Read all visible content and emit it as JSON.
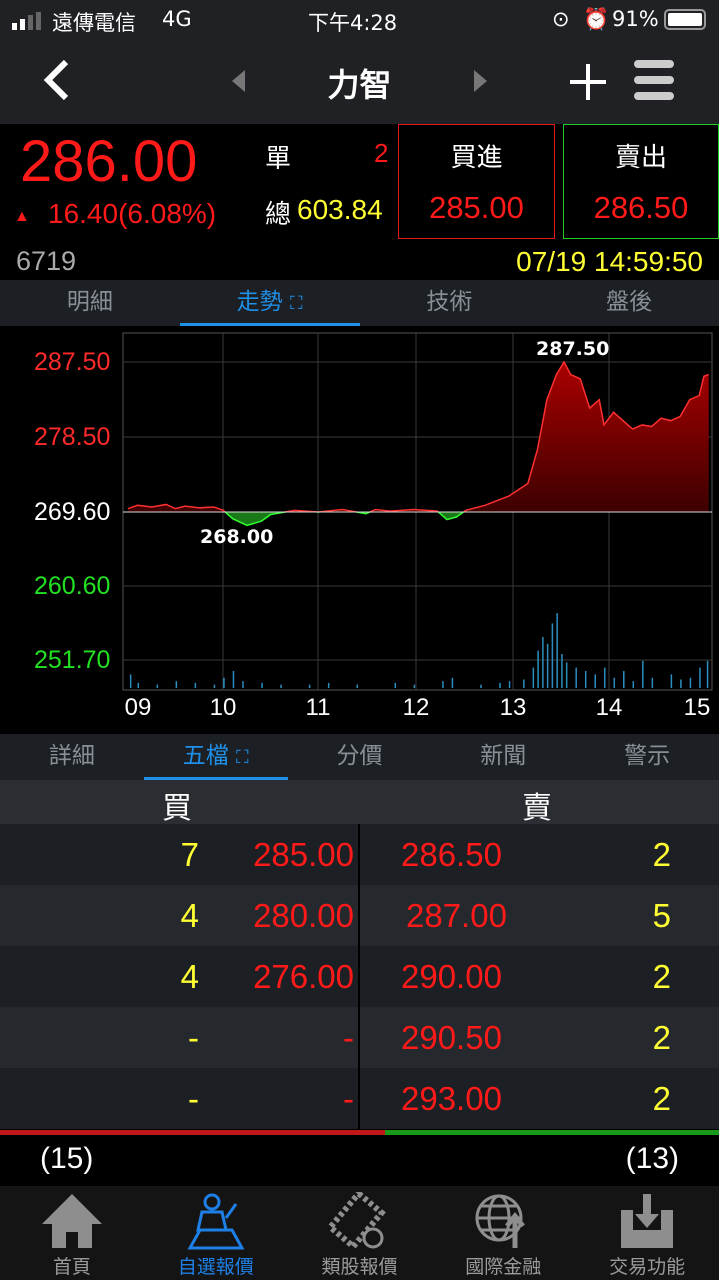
{
  "status_bar": {
    "carrier": "遠傳電信",
    "network": "4G",
    "time": "下午4:28",
    "battery": "91%"
  },
  "header": {
    "title": "力智",
    "back_icon": "chevron-left-icon",
    "add_icon": "plus-icon",
    "menu_icon": "hamburger-menu-icon"
  },
  "quote": {
    "price": "286.00",
    "change": "16.40(6.08%)",
    "single_label": "單",
    "single_value": "2",
    "total_label": "總",
    "total_value": "603.84",
    "buy_label": "買進",
    "buy_price": "285.00",
    "sell_label": "賣出",
    "sell_price": "286.50",
    "code": "6719",
    "datetime": "07/19 14:59:50",
    "up_color": "#ff1a1a",
    "down_color": "#22e022"
  },
  "top_tabs": [
    {
      "label": "明細"
    },
    {
      "label": "走勢"
    },
    {
      "label": "技術"
    },
    {
      "label": "盤後"
    }
  ],
  "chart_data": {
    "type": "line",
    "y_ticks": [
      "287.50",
      "278.50",
      "269.60",
      "260.60",
      "251.70"
    ],
    "ylim": [
      251.7,
      287.5
    ],
    "reference": 269.6,
    "x_ticks": [
      "09",
      "10",
      "11",
      "12",
      "13",
      "14",
      "15"
    ],
    "annotations": {
      "high": "287.50",
      "low": "268.00"
    },
    "grid": true,
    "price": [
      [
        9.0,
        270.0
      ],
      [
        9.1,
        270.4
      ],
      [
        9.25,
        270.2
      ],
      [
        9.4,
        270.5
      ],
      [
        9.5,
        270.0
      ],
      [
        9.6,
        270.3
      ],
      [
        9.75,
        270.1
      ],
      [
        9.9,
        270.2
      ],
      [
        10.0,
        269.8
      ],
      [
        10.1,
        268.8
      ],
      [
        10.25,
        268.0
      ],
      [
        10.4,
        268.5
      ],
      [
        10.5,
        269.3
      ],
      [
        10.75,
        269.8
      ],
      [
        11.0,
        269.6
      ],
      [
        11.25,
        269.9
      ],
      [
        11.5,
        269.4
      ],
      [
        11.6,
        269.9
      ],
      [
        11.75,
        269.7
      ],
      [
        12.0,
        269.9
      ],
      [
        12.25,
        269.7
      ],
      [
        12.35,
        268.7
      ],
      [
        12.45,
        269.0
      ],
      [
        12.55,
        269.8
      ],
      [
        12.75,
        270.4
      ],
      [
        13.0,
        271.5
      ],
      [
        13.2,
        273.0
      ],
      [
        13.3,
        277.0
      ],
      [
        13.4,
        283.0
      ],
      [
        13.5,
        286.0
      ],
      [
        13.58,
        287.5
      ],
      [
        13.65,
        286.0
      ],
      [
        13.75,
        285.5
      ],
      [
        13.85,
        282.0
      ],
      [
        13.95,
        283.0
      ],
      [
        14.0,
        280.0
      ],
      [
        14.1,
        281.5
      ],
      [
        14.2,
        280.5
      ],
      [
        14.3,
        279.5
      ],
      [
        14.4,
        280.0
      ],
      [
        14.5,
        279.8
      ],
      [
        14.6,
        280.8
      ],
      [
        14.7,
        280.5
      ],
      [
        14.8,
        281.0
      ],
      [
        14.9,
        283.0
      ],
      [
        15.0,
        283.5
      ],
      [
        15.05,
        285.8
      ],
      [
        15.1,
        286.0
      ]
    ],
    "volume": [
      [
        9.02,
        8
      ],
      [
        9.1,
        3
      ],
      [
        9.3,
        2
      ],
      [
        9.5,
        4
      ],
      [
        9.7,
        3
      ],
      [
        9.9,
        2
      ],
      [
        10.0,
        6
      ],
      [
        10.1,
        10
      ],
      [
        10.2,
        4
      ],
      [
        10.4,
        3
      ],
      [
        10.6,
        2
      ],
      [
        10.9,
        2
      ],
      [
        11.1,
        3
      ],
      [
        11.4,
        2
      ],
      [
        11.8,
        3
      ],
      [
        12.0,
        2
      ],
      [
        12.3,
        4
      ],
      [
        12.4,
        6
      ],
      [
        12.7,
        2
      ],
      [
        12.9,
        3
      ],
      [
        13.0,
        4
      ],
      [
        13.15,
        5
      ],
      [
        13.25,
        12
      ],
      [
        13.3,
        22
      ],
      [
        13.35,
        30
      ],
      [
        13.4,
        26
      ],
      [
        13.45,
        38
      ],
      [
        13.5,
        44
      ],
      [
        13.55,
        20
      ],
      [
        13.6,
        15
      ],
      [
        13.7,
        12
      ],
      [
        13.8,
        10
      ],
      [
        13.9,
        8
      ],
      [
        14.0,
        12
      ],
      [
        14.1,
        6
      ],
      [
        14.2,
        10
      ],
      [
        14.3,
        4
      ],
      [
        14.4,
        16
      ],
      [
        14.5,
        6
      ],
      [
        14.7,
        8
      ],
      [
        14.8,
        5
      ],
      [
        14.9,
        6
      ],
      [
        15.0,
        12
      ],
      [
        15.08,
        16
      ]
    ]
  },
  "bottom_tabs": [
    {
      "label": "詳細"
    },
    {
      "label": "五檔"
    },
    {
      "label": "分價"
    },
    {
      "label": "新聞"
    },
    {
      "label": "警示"
    }
  ],
  "order_book": {
    "buy_header": "買",
    "sell_header": "賣",
    "rows": [
      {
        "bid_qty": "7",
        "bid": "285.00",
        "ask": "286.50",
        "ask_qty": "2"
      },
      {
        "bid_qty": "4",
        "bid": "280.00",
        "ask": "287.00",
        "ask_qty": "5"
      },
      {
        "bid_qty": "4",
        "bid": "276.00",
        "ask": "290.00",
        "ask_qty": "2"
      },
      {
        "bid_qty": "-",
        "bid": "-",
        "ask": "290.50",
        "ask_qty": "2"
      },
      {
        "bid_qty": "-",
        "bid": "-",
        "ask": "293.00",
        "ask_qty": "2"
      }
    ],
    "bid_total": "(15)",
    "ask_total": "(13)",
    "bid_ratio": 0.536
  },
  "nav_bar": [
    {
      "label": "首頁",
      "icon": "home-icon"
    },
    {
      "label": "自選報價",
      "icon": "person-icon"
    },
    {
      "label": "類股報價",
      "icon": "film-money-icon"
    },
    {
      "label": "國際金融",
      "icon": "globe-arrow-icon"
    },
    {
      "label": "交易功能",
      "icon": "inbox-download-icon"
    }
  ]
}
